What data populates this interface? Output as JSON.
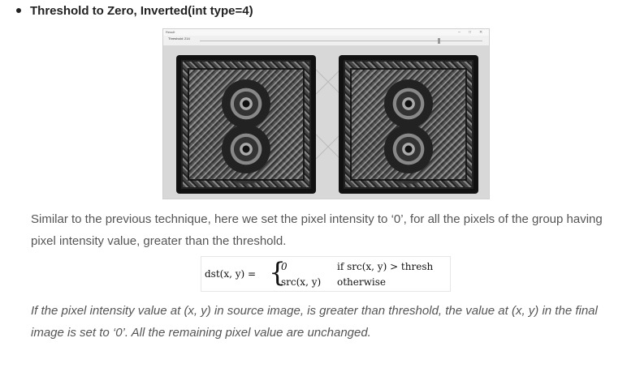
{
  "heading": "Threshold to Zero, Inverted(int type=4)",
  "window": {
    "title": "Result",
    "trackbar_label": "Threshold: 214",
    "minimize": "–",
    "maximize": "□",
    "close": "✕"
  },
  "description": "Similar to the previous technique, here we set the pixel intensity to ‘0’, for all the pixels of the group having pixel intensity value, greater than the threshold.",
  "formula": {
    "lhs": "dst(x, y) =",
    "case1_value": "0",
    "case1_condition": "if src(x, y) > thresh",
    "case2_value": "src(x, y)",
    "case2_condition": "otherwise"
  },
  "note": "If the pixel intensity value at (x, y) in source image, is greater than threshold, the value at (x, y) in the final image is set to ‘0’. All the remaining pixel value are unchanged."
}
